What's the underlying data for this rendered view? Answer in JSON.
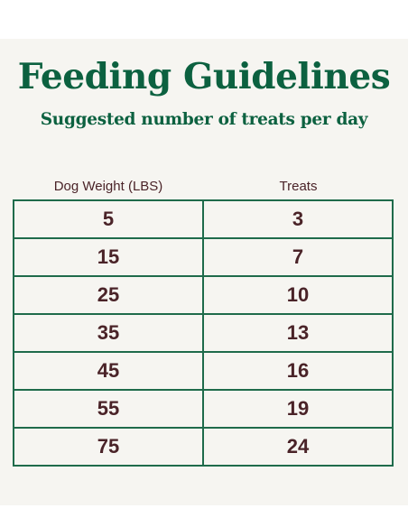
{
  "title": "Feeding Guidelines",
  "subtitle": "Suggested number of treats per day",
  "table": {
    "headers": [
      "Dog Weight (LBS)",
      "Treats"
    ],
    "rows": [
      [
        "5",
        "3"
      ],
      [
        "15",
        "7"
      ],
      [
        "25",
        "10"
      ],
      [
        "35",
        "13"
      ],
      [
        "45",
        "16"
      ],
      [
        "55",
        "19"
      ],
      [
        "75",
        "24"
      ]
    ]
  },
  "colors": {
    "heading_green": "#0c6140",
    "border_green": "#1f6b4b",
    "text_maroon": "#4a2328",
    "panel_background": "#f6f5f1"
  }
}
